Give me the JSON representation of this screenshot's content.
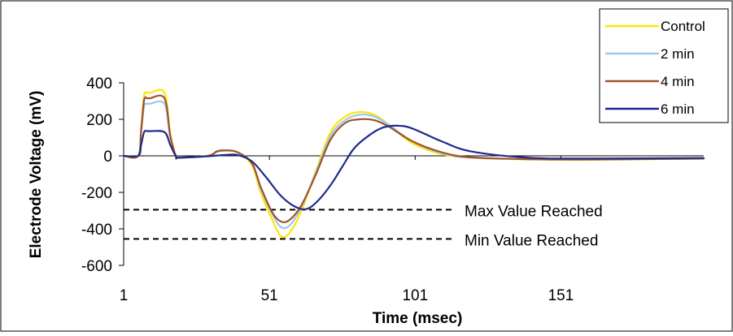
{
  "chart_data": {
    "type": "line",
    "title": "",
    "xlabel": "Time (msec)",
    "ylabel": "Electrode Voltage (mV)",
    "xlim": [
      1,
      200
    ],
    "ylim": [
      -600,
      400
    ],
    "x_ticks": [
      1,
      51,
      101,
      151
    ],
    "y_ticks": [
      400,
      200,
      0,
      -200,
      -400,
      -600
    ],
    "grid": false,
    "legend_position": "top-right",
    "series": [
      {
        "name": "Control",
        "color": "#FFE600",
        "x": [
          1,
          6,
          7,
          8,
          9,
          10,
          15,
          17,
          19,
          20,
          30,
          33,
          36,
          40,
          45,
          48,
          52,
          55,
          58,
          62,
          67,
          72,
          77,
          82,
          87,
          92,
          100,
          110,
          120,
          140,
          160,
          200
        ],
        "y": [
          0,
          0,
          150,
          330,
          345,
          345,
          345,
          120,
          -5,
          -10,
          0,
          25,
          30,
          20,
          -50,
          -200,
          -350,
          -440,
          -420,
          -300,
          -80,
          130,
          215,
          240,
          225,
          170,
          70,
          10,
          -10,
          -20,
          -22,
          -15
        ]
      },
      {
        "name": "2 min",
        "color": "#9CC9EB",
        "x": [
          1,
          6,
          7,
          8,
          9,
          10,
          15,
          17,
          19,
          20,
          30,
          33,
          36,
          40,
          45,
          48,
          52,
          55,
          58,
          62,
          67,
          72,
          77,
          82,
          87,
          92,
          100,
          110,
          120,
          140,
          160,
          200
        ],
        "y": [
          0,
          0,
          130,
          270,
          285,
          285,
          285,
          100,
          -5,
          -10,
          0,
          22,
          28,
          20,
          -40,
          -180,
          -320,
          -390,
          -380,
          -280,
          -90,
          110,
          195,
          225,
          215,
          170,
          80,
          15,
          -10,
          -18,
          -20,
          -15
        ]
      },
      {
        "name": "4 min",
        "color": "#A0522D",
        "x": [
          1,
          6,
          7,
          8,
          9,
          10,
          15,
          17,
          19,
          20,
          30,
          33,
          36,
          40,
          45,
          48,
          52,
          55,
          58,
          62,
          67,
          72,
          77,
          82,
          87,
          92,
          100,
          110,
          120,
          140,
          160,
          200
        ],
        "y": [
          0,
          0,
          140,
          305,
          315,
          315,
          315,
          110,
          -5,
          -10,
          0,
          25,
          30,
          20,
          -40,
          -170,
          -310,
          -360,
          -350,
          -270,
          -100,
          90,
          180,
          200,
          195,
          160,
          80,
          20,
          -8,
          -18,
          -20,
          -15
        ]
      },
      {
        "name": "6 min",
        "color": "#1F2A8A",
        "x": [
          1,
          6,
          7,
          8,
          9,
          10,
          15,
          17,
          19,
          20,
          30,
          36,
          40,
          45,
          50,
          55,
          60,
          64,
          68,
          72,
          76,
          80,
          85,
          90,
          95,
          100,
          110,
          120,
          140,
          160,
          200
        ],
        "y": [
          0,
          0,
          60,
          130,
          135,
          135,
          130,
          60,
          -5,
          -10,
          -2,
          5,
          5,
          -30,
          -120,
          -220,
          -280,
          -290,
          -240,
          -160,
          -60,
          40,
          110,
          155,
          165,
          150,
          80,
          25,
          -10,
          -15,
          -12
        ]
      }
    ],
    "annotations": [
      {
        "text": "Max Value Reached",
        "y": -295
      },
      {
        "text": "Min Value Reached",
        "y": -455
      }
    ]
  }
}
